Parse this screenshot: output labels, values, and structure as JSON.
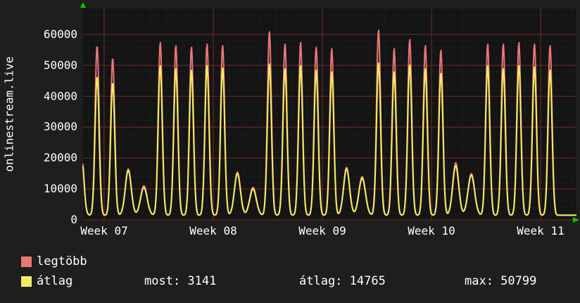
{
  "page": {
    "background": "#1e1e1e",
    "plot_background": "#141414"
  },
  "y_axis_title": "onlinestream.live",
  "legend": {
    "items": [
      {
        "label": "legtöbb",
        "color": "#ed7676"
      },
      {
        "label": "átlag",
        "color": "#f2ee62"
      }
    ]
  },
  "stats": {
    "most": "most: 3141",
    "atlag": "átlag: 14765",
    "max": "max: 50799"
  },
  "chart_data": {
    "type": "line",
    "title": "",
    "ylabel": "onlinestream.live",
    "xlabel": "",
    "ylim": [
      0,
      68400
    ],
    "yticks": [
      0,
      10000,
      20000,
      30000,
      40000,
      50000,
      60000
    ],
    "week_ticks": [
      {
        "label": "Week 07",
        "day": 1.35
      },
      {
        "label": "Week 08",
        "day": 8.35
      },
      {
        "label": "Week 09",
        "day": 15.35
      },
      {
        "label": "Week 10",
        "day": 22.35
      },
      {
        "label": "Week 11",
        "day": 29.35
      }
    ],
    "days_span": 31.6,
    "base_value": 1500,
    "grid": {
      "major_color": "#6f2c2c",
      "minor_color": "#2c2c2c",
      "arrow_color": "#00c800"
    },
    "series": [
      {
        "name": "legtöbb",
        "color": "#ed7676",
        "value_key": "max"
      },
      {
        "name": "átlag",
        "color": "#f2ee62",
        "value_key": "avg"
      }
    ],
    "summary": {
      "most": 3141,
      "atlag": 14765,
      "max": 50799
    },
    "spikes": [
      {
        "c": -0.1,
        "max": 22000,
        "avg": 21000,
        "w": 0.15
      },
      {
        "c": 0.9,
        "max": 56500,
        "avg": 46500,
        "w": 0.13
      },
      {
        "c": 1.9,
        "max": 52500,
        "avg": 44500,
        "w": 0.13
      },
      {
        "c": 2.9,
        "max": 16500,
        "avg": 16000,
        "w": 0.19
      },
      {
        "c": 3.9,
        "max": 11000,
        "avg": 10500,
        "w": 0.21
      },
      {
        "c": 4.95,
        "max": 57500,
        "avg": 50000,
        "w": 0.13
      },
      {
        "c": 5.95,
        "max": 56500,
        "avg": 49000,
        "w": 0.13
      },
      {
        "c": 6.95,
        "max": 56000,
        "avg": 48500,
        "w": 0.13
      },
      {
        "c": 7.95,
        "max": 57000,
        "avg": 50000,
        "w": 0.13
      },
      {
        "c": 8.95,
        "max": 56500,
        "avg": 49200,
        "w": 0.13
      },
      {
        "c": 9.9,
        "max": 15500,
        "avg": 15000,
        "w": 0.19
      },
      {
        "c": 10.9,
        "max": 10500,
        "avg": 10000,
        "w": 0.21
      },
      {
        "c": 11.95,
        "max": 61000,
        "avg": 50500,
        "w": 0.13
      },
      {
        "c": 12.95,
        "max": 57000,
        "avg": 49000,
        "w": 0.13
      },
      {
        "c": 13.95,
        "max": 57500,
        "avg": 50000,
        "w": 0.13
      },
      {
        "c": 14.95,
        "max": 56000,
        "avg": 48500,
        "w": 0.13
      },
      {
        "c": 15.95,
        "max": 55500,
        "avg": 48000,
        "w": 0.13
      },
      {
        "c": 16.9,
        "max": 17000,
        "avg": 16500,
        "w": 0.19
      },
      {
        "c": 17.9,
        "max": 14000,
        "avg": 13500,
        "w": 0.21
      },
      {
        "c": 18.95,
        "max": 61500,
        "avg": 50799,
        "w": 0.13
      },
      {
        "c": 19.95,
        "max": 55500,
        "avg": 48000,
        "w": 0.13
      },
      {
        "c": 20.95,
        "max": 58500,
        "avg": 50200,
        "w": 0.13
      },
      {
        "c": 21.95,
        "max": 56500,
        "avg": 49000,
        "w": 0.13
      },
      {
        "c": 22.95,
        "max": 55000,
        "avg": 47500,
        "w": 0.13
      },
      {
        "c": 23.9,
        "max": 18500,
        "avg": 17500,
        "w": 0.19
      },
      {
        "c": 24.9,
        "max": 15000,
        "avg": 14500,
        "w": 0.21
      },
      {
        "c": 25.95,
        "max": 57000,
        "avg": 50000,
        "w": 0.13
      },
      {
        "c": 26.95,
        "max": 57000,
        "avg": 49000,
        "w": 0.13
      },
      {
        "c": 27.95,
        "max": 57500,
        "avg": 50000,
        "w": 0.13
      },
      {
        "c": 28.95,
        "max": 57000,
        "avg": 49500,
        "w": 0.13
      },
      {
        "c": 29.95,
        "max": 56500,
        "avg": 48500,
        "w": 0.13
      }
    ]
  }
}
